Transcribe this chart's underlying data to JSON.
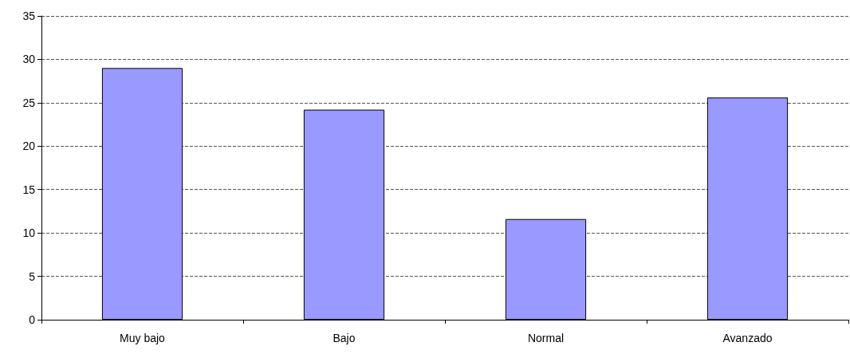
{
  "chart_data": {
    "type": "bar",
    "categories": [
      "Muy bajo",
      "Bajo",
      "Normal",
      "Avanzado"
    ],
    "values": [
      29.0,
      24.2,
      11.6,
      25.6
    ],
    "color": "#9999ff",
    "ylim": [
      0,
      35
    ],
    "yticks": [
      0,
      5,
      10,
      15,
      20,
      25,
      30,
      35
    ],
    "grid": "y",
    "line_style": "dashed"
  }
}
